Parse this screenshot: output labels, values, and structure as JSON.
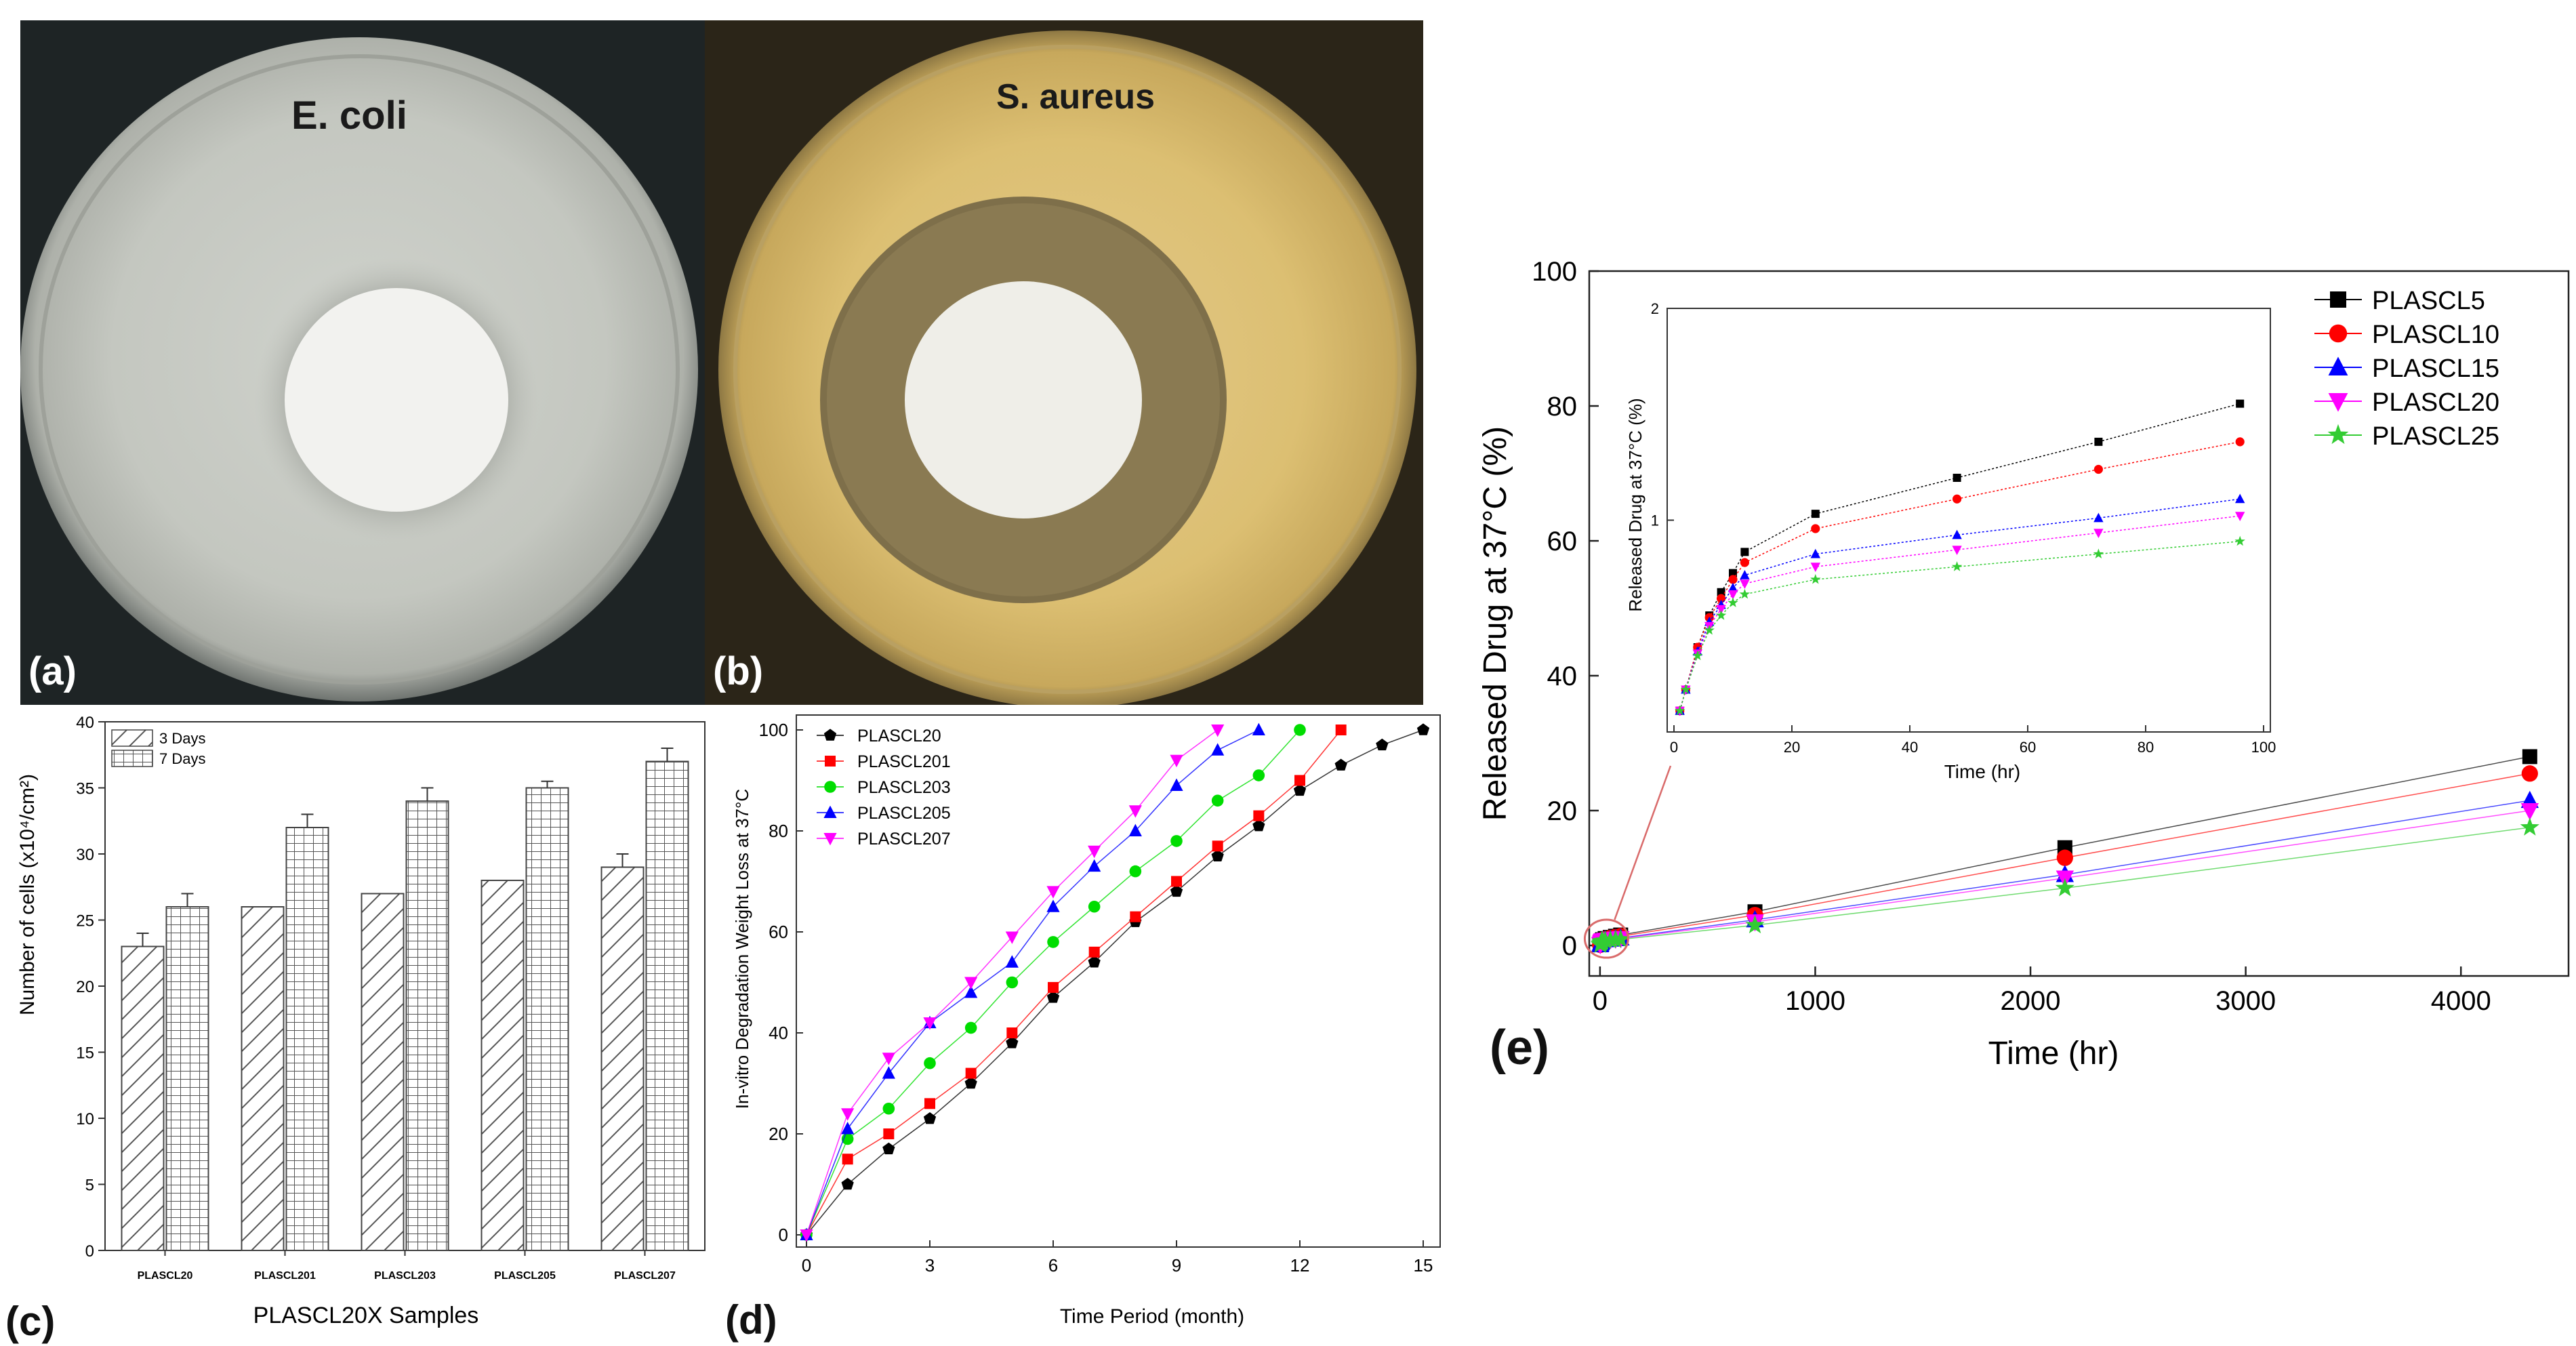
{
  "photos": {
    "a": {
      "organism": "E. coli",
      "letter": "(a)"
    },
    "b": {
      "organism": "S. aureus",
      "letter": "(b)"
    }
  },
  "panel_letters": {
    "c": "(c)",
    "d": "(d)",
    "e": "(e)"
  },
  "chart_data": [
    {
      "id": "c",
      "type": "bar",
      "title": "",
      "xlabel": "PLASCL20X Samples",
      "ylabel": "Number of cells (x10⁴/cm²)",
      "ylim": [
        0,
        40
      ],
      "yticks": [
        "0",
        "5",
        "10",
        "15",
        "20",
        "25",
        "30",
        "35",
        "40"
      ],
      "categories": [
        "PLASCL20",
        "PLASCL201",
        "PLASCL203",
        "PLASCL205",
        "PLASCL207"
      ],
      "series": [
        {
          "name": "3 Days",
          "values": [
            23,
            26,
            27,
            28,
            29
          ],
          "errors": [
            1,
            0,
            0,
            0,
            1
          ]
        },
        {
          "name": "7 Days",
          "values": [
            26,
            32,
            34,
            35,
            37
          ],
          "errors": [
            1,
            1,
            1,
            0.5,
            1
          ]
        }
      ],
      "legend": "top-left"
    },
    {
      "id": "d",
      "type": "line",
      "title": "",
      "xlabel": "Time Period (month)",
      "ylabel": "In-vitro Degradation Weight Loss at 37°C",
      "xlim": [
        0,
        15
      ],
      "ylim": [
        0,
        100
      ],
      "xticks": [
        "0",
        "3",
        "6",
        "9",
        "12",
        "15"
      ],
      "yticks": [
        "0",
        "20",
        "40",
        "60",
        "80",
        "100"
      ],
      "series": [
        {
          "name": "PLASCL20",
          "color": "#000000",
          "marker": "pentagon",
          "x": [
            0,
            1,
            2,
            3,
            4,
            5,
            6,
            7,
            8,
            9,
            10,
            11,
            12,
            13,
            14,
            15
          ],
          "y": [
            0,
            10,
            17,
            23,
            30,
            38,
            47,
            54,
            62,
            68,
            75,
            81,
            88,
            93,
            97,
            100
          ]
        },
        {
          "name": "PLASCL201",
          "color": "#ff0000",
          "marker": "square",
          "x": [
            0,
            1,
            2,
            3,
            4,
            5,
            6,
            7,
            8,
            9,
            10,
            11,
            12,
            13
          ],
          "y": [
            0,
            15,
            20,
            26,
            32,
            40,
            49,
            56,
            63,
            70,
            77,
            83,
            90,
            100
          ]
        },
        {
          "name": "PLASCL203",
          "color": "#00dd00",
          "marker": "circle",
          "x": [
            0,
            1,
            2,
            3,
            4,
            5,
            6,
            7,
            8,
            9,
            10,
            11,
            12
          ],
          "y": [
            0,
            19,
            25,
            34,
            41,
            50,
            58,
            65,
            72,
            78,
            86,
            91,
            100
          ]
        },
        {
          "name": "PLASCL205",
          "color": "#0000ff",
          "marker": "triangle-up",
          "x": [
            0,
            1,
            2,
            3,
            4,
            5,
            6,
            7,
            8,
            9,
            10,
            11
          ],
          "y": [
            0,
            21,
            32,
            42,
            48,
            54,
            65,
            73,
            80,
            89,
            96,
            100
          ]
        },
        {
          "name": "PLASCL207",
          "color": "#ff00ff",
          "marker": "triangle-down",
          "x": [
            0,
            1,
            2,
            3,
            4,
            5,
            6,
            7,
            8,
            9,
            10
          ],
          "y": [
            0,
            24,
            35,
            42,
            50,
            59,
            68,
            76,
            84,
            94,
            100
          ]
        }
      ],
      "legend": "top-left"
    },
    {
      "id": "e",
      "type": "line",
      "title": "",
      "xlabel": "Time (hr)",
      "ylabel": "Released Drug at 37°C (%)",
      "xlim": [
        -50,
        4500
      ],
      "ylim": [
        0,
        100
      ],
      "xticks": [
        "0",
        "1000",
        "2000",
        "3000",
        "4000"
      ],
      "yticks": [
        "0",
        "20",
        "40",
        "60",
        "80",
        "100"
      ],
      "series": [
        {
          "name": "PLASCL5",
          "color": "#000000",
          "marker": "square",
          "x": [
            1,
            2,
            4,
            6,
            8,
            10,
            12,
            24,
            48,
            72,
            96,
            720,
            2160,
            4320
          ],
          "y": [
            0.1,
            0.2,
            0.4,
            0.55,
            0.66,
            0.75,
            0.85,
            1.03,
            1.2,
            1.37,
            1.55,
            5,
            14.5,
            28
          ]
        },
        {
          "name": "PLASCL10",
          "color": "#ff0000",
          "marker": "circle",
          "x": [
            1,
            2,
            4,
            6,
            8,
            10,
            12,
            24,
            48,
            72,
            96,
            720,
            2160,
            4320
          ],
          "y": [
            0.1,
            0.2,
            0.4,
            0.54,
            0.63,
            0.72,
            0.8,
            0.96,
            1.1,
            1.24,
            1.37,
            4.5,
            13,
            25.5
          ]
        },
        {
          "name": "PLASCL15",
          "color": "#0000ff",
          "marker": "triangle-up",
          "x": [
            1,
            2,
            4,
            6,
            8,
            10,
            12,
            24,
            48,
            72,
            96,
            720,
            2160,
            4320
          ],
          "y": [
            0.1,
            0.2,
            0.38,
            0.52,
            0.6,
            0.68,
            0.74,
            0.84,
            0.93,
            1.01,
            1.1,
            3.8,
            10.5,
            21.5
          ]
        },
        {
          "name": "PLASCL20",
          "color": "#ff00ff",
          "marker": "triangle-down",
          "x": [
            1,
            2,
            4,
            6,
            8,
            10,
            12,
            24,
            48,
            72,
            96,
            720,
            2160,
            4320
          ],
          "y": [
            0.1,
            0.2,
            0.37,
            0.5,
            0.58,
            0.65,
            0.7,
            0.78,
            0.86,
            0.94,
            1.02,
            3.5,
            10,
            20
          ]
        },
        {
          "name": "PLASCL25",
          "color": "#33cc33",
          "marker": "star",
          "x": [
            1,
            2,
            4,
            6,
            8,
            10,
            12,
            24,
            48,
            72,
            96,
            720,
            2160,
            4320
          ],
          "y": [
            0.1,
            0.2,
            0.36,
            0.48,
            0.55,
            0.61,
            0.65,
            0.72,
            0.78,
            0.84,
            0.9,
            3,
            8.5,
            17.5
          ]
        }
      ],
      "legend": "top-right",
      "inset": {
        "xlabel": "Time (hr)",
        "ylabel": "Released Drug at 37°C (%)",
        "xlim": [
          0,
          100
        ],
        "ylim": [
          0,
          2
        ],
        "xticks": [
          "0",
          "20",
          "40",
          "60",
          "80",
          "100"
        ],
        "yticks": [
          "1",
          "2"
        ]
      }
    }
  ]
}
